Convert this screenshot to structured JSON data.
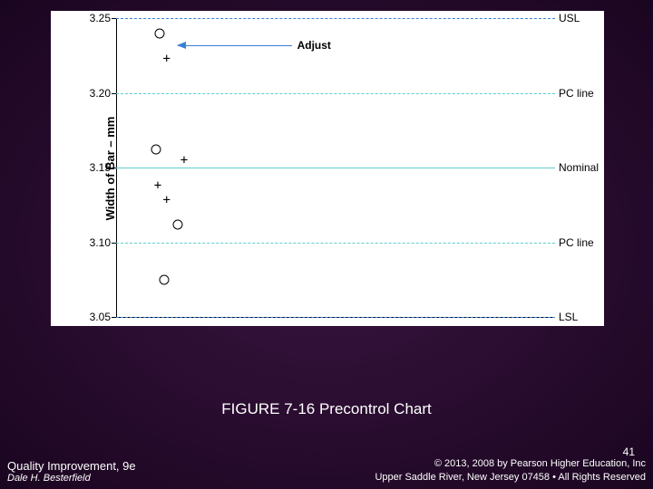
{
  "slide": {
    "background_gradient": [
      "#3a1540",
      "#1a0520"
    ],
    "page_number": "41",
    "caption": "FIGURE 7-16 Precontrol Chart"
  },
  "footer": {
    "book_title": "Quality Improvement, 9e",
    "author": "Dale H. Besterfield",
    "copyright_line1": "© 2013, 2008 by Pearson Higher Education, Inc",
    "copyright_line2": "Upper Saddle River, New Jersey 07458 • All Rights Reserved"
  },
  "chart": {
    "y_axis_label": "Width of Bar – mm",
    "ylim": [
      3.05,
      3.25
    ],
    "yticks": [
      3.05,
      3.1,
      3.15,
      3.2,
      3.25
    ],
    "ytick_labels": [
      "3.05",
      "3.10",
      "3.15",
      "3.20",
      "3.25"
    ],
    "plot_bg": "#ffffff",
    "axis_color": "#000000",
    "label_fontsize": 12,
    "reference_lines": [
      {
        "y": 3.25,
        "label": "USL",
        "color": "#3a7fd5",
        "style": "dashed"
      },
      {
        "y": 3.2,
        "label": "PC line",
        "color": "#5fcfcf",
        "style": "dashdot"
      },
      {
        "y": 3.15,
        "label": "Nominal",
        "color": "#5fcfcf",
        "style": "solid"
      },
      {
        "y": 3.1,
        "label": "PC line",
        "color": "#5fcfcf",
        "style": "dashdot"
      },
      {
        "y": 3.05,
        "label": "LSL",
        "color": "#3a7fd5",
        "style": "dashed"
      }
    ],
    "points_circle": [
      {
        "x": 0.1,
        "y": 3.24
      },
      {
        "x": 0.09,
        "y": 3.162
      },
      {
        "x": 0.14,
        "y": 3.112
      },
      {
        "x": 0.11,
        "y": 3.075
      }
    ],
    "points_plus": [
      {
        "x": 0.115,
        "y": 3.223
      },
      {
        "x": 0.155,
        "y": 3.155
      },
      {
        "x": 0.095,
        "y": 3.138
      },
      {
        "x": 0.115,
        "y": 3.128
      }
    ],
    "adjust_arrow": {
      "label": "Adjust",
      "y": 3.232,
      "x_from": 0.4,
      "x_to": 0.14,
      "color": "#3a7fd5"
    }
  }
}
